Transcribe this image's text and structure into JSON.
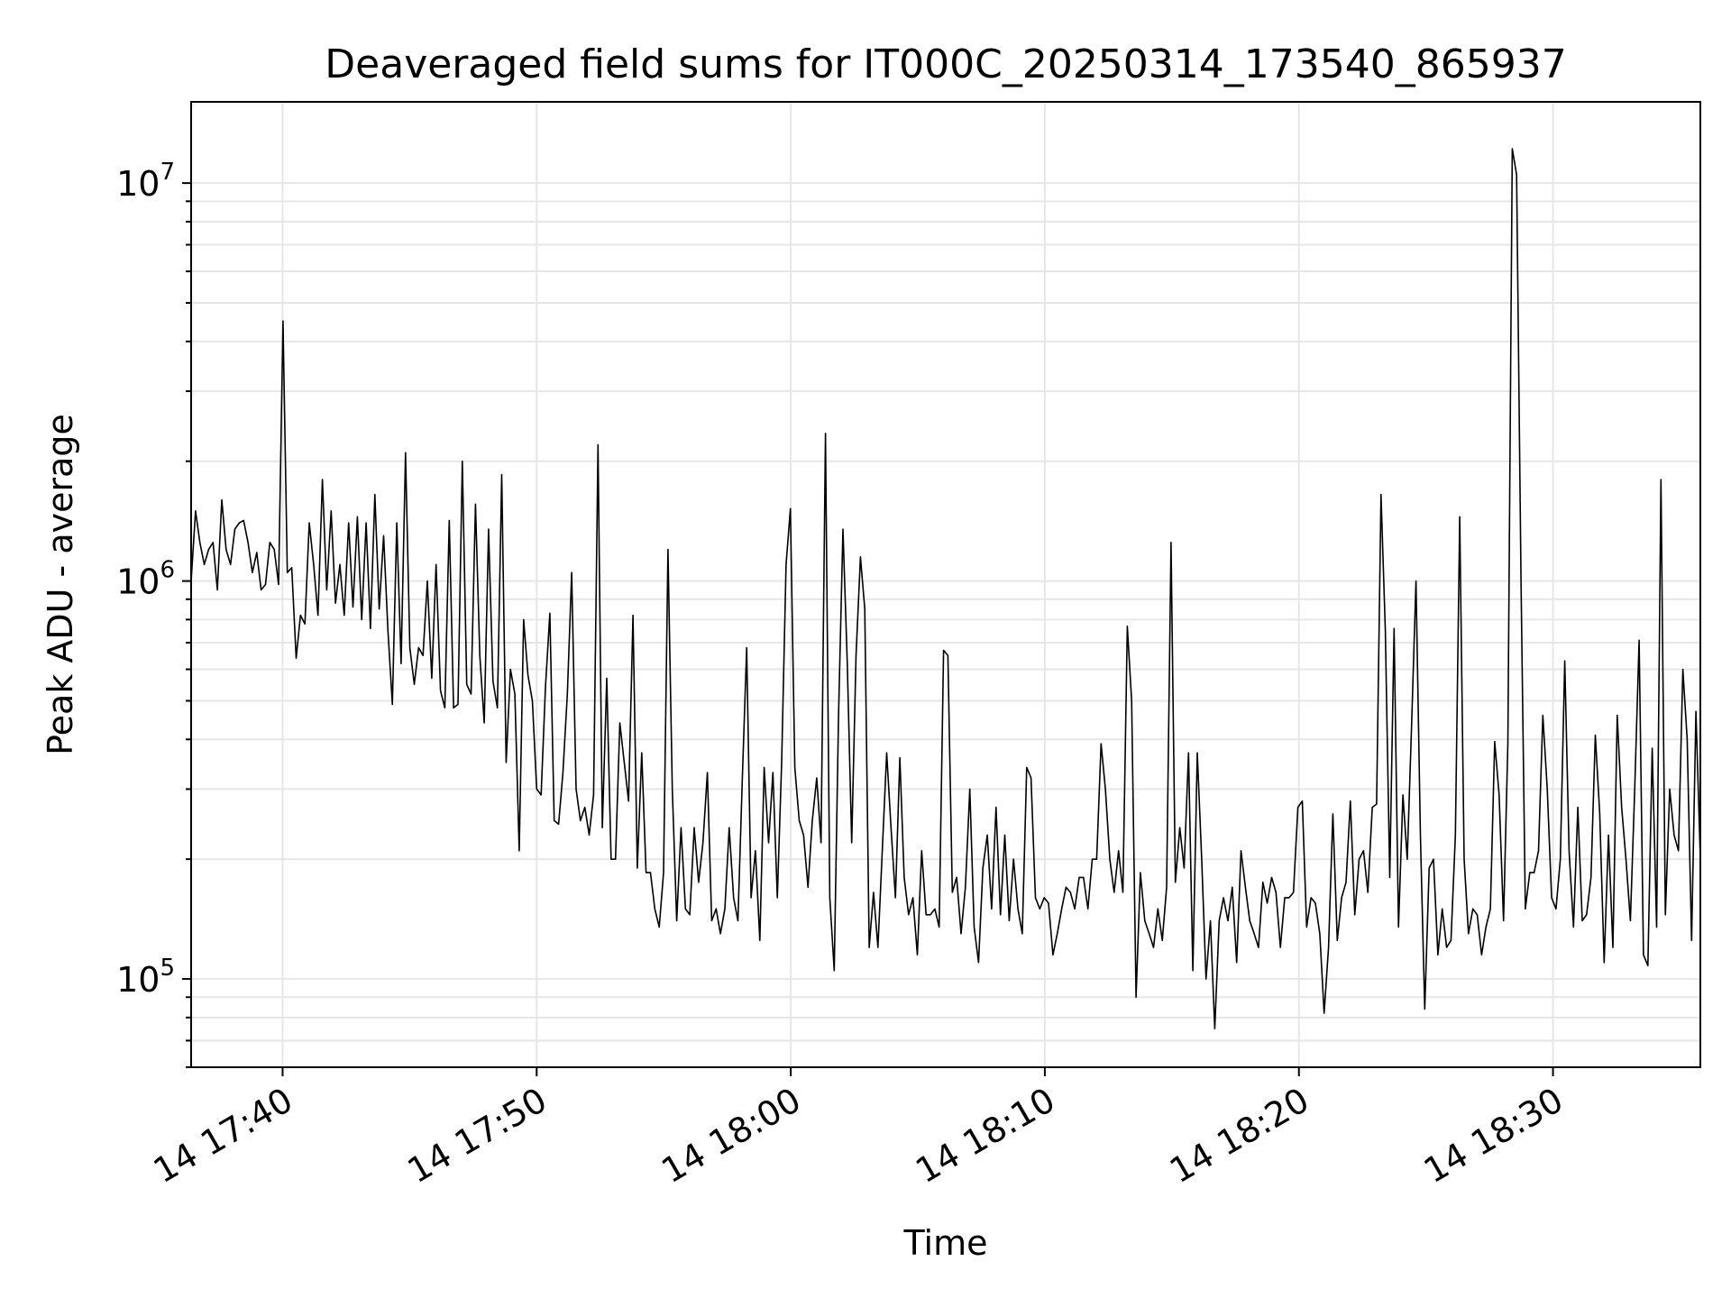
{
  "chart_data": {
    "type": "line",
    "title": "Deaveraged field sums for IT000C_20250314_173540_865937",
    "xlabel": "Time",
    "ylabel": "Peak ADU - average",
    "yscale": "log",
    "ylim": [
      60000,
      16000000
    ],
    "xlim": [
      "2025-03-14 17:36:24",
      "2025-03-14 18:35:48"
    ],
    "grid": true,
    "line_color": "#000000",
    "grid_color": "#e6e6e6",
    "x_ticks": [
      {
        "label": "14 17:40",
        "value": "2025-03-14 17:40:00"
      },
      {
        "label": "14 17:50",
        "value": "2025-03-14 17:50:00"
      },
      {
        "label": "14 18:00",
        "value": "2025-03-14 18:00:00"
      },
      {
        "label": "14 18:10",
        "value": "2025-03-14 18:10:00"
      },
      {
        "label": "14 18:20",
        "value": "2025-03-14 18:20:00"
      },
      {
        "label": "14 18:30",
        "value": "2025-03-14 18:30:00"
      }
    ],
    "y_ticks": [
      {
        "base": "10",
        "exp": "5",
        "value": 100000
      },
      {
        "base": "10",
        "exp": "6",
        "value": 1000000
      },
      {
        "base": "10",
        "exp": "7",
        "value": 10000000
      }
    ],
    "series": [
      {
        "x_start": "2025-03-14 17:36:24",
        "x_end": "2025-03-14 18:35:48",
        "values": [
          1000000,
          1500000,
          1250000,
          1100000,
          1200000,
          1250000,
          950000,
          1600000,
          1200000,
          1100000,
          1350000,
          1400000,
          1420000,
          1250000,
          1050000,
          1180000,
          950000,
          980000,
          1250000,
          1200000,
          980000,
          4500000,
          1050000,
          1080000,
          640000,
          820000,
          780000,
          1400000,
          1100000,
          820000,
          1800000,
          950000,
          1500000,
          880000,
          1100000,
          820000,
          1400000,
          860000,
          1450000,
          800000,
          1400000,
          760000,
          1650000,
          850000,
          1300000,
          750000,
          490000,
          1400000,
          620000,
          2100000,
          680000,
          550000,
          680000,
          650000,
          1000000,
          570000,
          1100000,
          530000,
          480000,
          1420000,
          480000,
          490000,
          2000000,
          550000,
          520000,
          1560000,
          650000,
          440000,
          1350000,
          560000,
          480000,
          1850000,
          350000,
          600000,
          520000,
          210000,
          800000,
          580000,
          500000,
          300000,
          290000,
          540000,
          830000,
          250000,
          245000,
          330000,
          520000,
          1050000,
          300000,
          250000,
          270000,
          230000,
          290000,
          2200000,
          240000,
          570000,
          200000,
          200000,
          440000,
          350000,
          280000,
          820000,
          190000,
          370000,
          185000,
          185000,
          150000,
          135000,
          185000,
          1200000,
          300000,
          140000,
          240000,
          150000,
          145000,
          240000,
          175000,
          220000,
          330000,
          140000,
          150000,
          130000,
          150000,
          240000,
          160000,
          140000,
          320000,
          680000,
          160000,
          210000,
          125000,
          340000,
          220000,
          330000,
          160000,
          350000,
          1100000,
          1520000,
          340000,
          250000,
          230000,
          170000,
          250000,
          320000,
          220000,
          2350000,
          160000,
          105000,
          460000,
          1350000,
          620000,
          220000,
          650000,
          1150000,
          850000,
          120000,
          165000,
          120000,
          210000,
          370000,
          240000,
          160000,
          360000,
          180000,
          145000,
          160000,
          115000,
          210000,
          145000,
          145000,
          150000,
          135000,
          670000,
          650000,
          165000,
          180000,
          130000,
          170000,
          300000,
          135000,
          110000,
          190000,
          230000,
          150000,
          270000,
          145000,
          230000,
          140000,
          200000,
          150000,
          130000,
          340000,
          320000,
          160000,
          150000,
          160000,
          155000,
          115000,
          130000,
          150000,
          170000,
          165000,
          150000,
          180000,
          180000,
          150000,
          200000,
          200000,
          390000,
          300000,
          200000,
          165000,
          210000,
          165000,
          770000,
          500000,
          90000,
          185000,
          140000,
          130000,
          120000,
          150000,
          125000,
          170000,
          1250000,
          175000,
          240000,
          190000,
          370000,
          105000,
          370000,
          200000,
          100000,
          140000,
          75000,
          140000,
          160000,
          140000,
          170000,
          110000,
          210000,
          170000,
          140000,
          130000,
          120000,
          175000,
          155000,
          180000,
          165000,
          120000,
          160000,
          160000,
          165000,
          270000,
          280000,
          135000,
          160000,
          155000,
          130000,
          82000,
          120000,
          260000,
          125000,
          160000,
          175000,
          280000,
          145000,
          200000,
          210000,
          165000,
          270000,
          275000,
          1650000,
          750000,
          180000,
          760000,
          135000,
          290000,
          200000,
          440000,
          1000000,
          230000,
          84000,
          190000,
          200000,
          115000,
          150000,
          120000,
          125000,
          230000,
          1450000,
          200000,
          130000,
          150000,
          145000,
          115000,
          135000,
          150000,
          395000,
          290000,
          140000,
          390000,
          12200000,
          10500000,
          1000000,
          150000,
          185000,
          185000,
          210000,
          460000,
          300000,
          160000,
          150000,
          200000,
          630000,
          210000,
          135000,
          270000,
          140000,
          145000,
          180000,
          410000,
          260000,
          110000,
          230000,
          120000,
          460000,
          270000,
          200000,
          140000,
          300000,
          710000,
          115000,
          108000,
          380000,
          135000,
          1800000,
          145000,
          300000,
          230000,
          210000,
          600000,
          400000,
          125000,
          470000,
          200000
        ]
      }
    ]
  }
}
